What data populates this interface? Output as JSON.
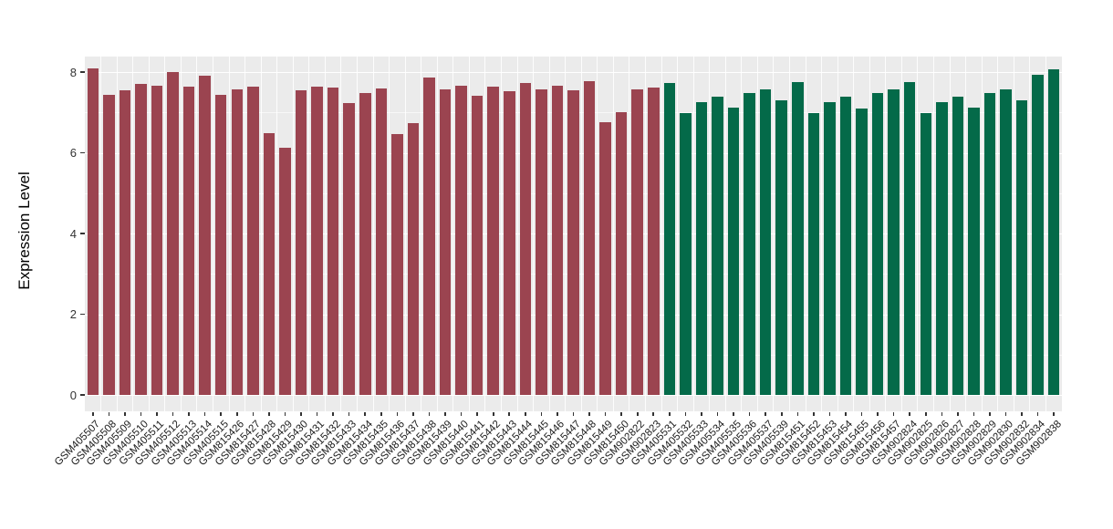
{
  "chart_data": {
    "type": "bar",
    "title": "",
    "xlabel": "",
    "ylabel": "Expression Level",
    "ylim": [
      0,
      8.8
    ],
    "yticks": [
      0,
      2,
      4,
      6,
      8
    ],
    "grid": "on",
    "legend": "none",
    "panel_bg": "#EBEBEB",
    "gridline_color": "#FFFFFF",
    "tick_color": "#333333",
    "group_colors": {
      "group1": "#9B4450",
      "group2": "#046A49"
    },
    "categories": [
      "GSM405507",
      "GSM405508",
      "GSM405509",
      "GSM405510",
      "GSM405511",
      "GSM405512",
      "GSM405513",
      "GSM405514",
      "GSM405515",
      "GSM815426",
      "GSM815427",
      "GSM815428",
      "GSM815429",
      "GSM815430",
      "GSM815431",
      "GSM815432",
      "GSM815433",
      "GSM815434",
      "GSM815435",
      "GSM815436",
      "GSM815437",
      "GSM815438",
      "GSM815439",
      "GSM815440",
      "GSM815441",
      "GSM815442",
      "GSM815443",
      "GSM815444",
      "GSM815445",
      "GSM815446",
      "GSM815447",
      "GSM815448",
      "GSM815449",
      "GSM815450",
      "GSM902822",
      "GSM902823",
      "GSM405531",
      "GSM405532",
      "GSM405533",
      "GSM405534",
      "GSM405535",
      "GSM405536",
      "GSM405537",
      "GSM405539",
      "GSM815451",
      "GSM815452",
      "GSM815453",
      "GSM815454",
      "GSM815455",
      "GSM815456",
      "GSM815457",
      "GSM902824",
      "GSM902825",
      "GSM902826",
      "GSM902827",
      "GSM902828",
      "GSM902829",
      "GSM902830",
      "GSM902832",
      "GSM902834",
      "GSM902838"
    ],
    "values": [
      8.1,
      7.43,
      7.55,
      7.71,
      7.66,
      7.99,
      7.63,
      7.92,
      7.44,
      7.57,
      7.63,
      6.49,
      6.13,
      7.54,
      7.64,
      7.61,
      7.24,
      7.47,
      7.6,
      6.46,
      6.73,
      7.87,
      7.58,
      7.65,
      7.42,
      7.64,
      7.53,
      7.72,
      7.57,
      7.67,
      7.54,
      7.77,
      6.76,
      7.0,
      7.58,
      7.62,
      7.74,
      6.99,
      7.26,
      7.39,
      7.12,
      7.48,
      7.57,
      7.3,
      7.75,
      6.98,
      7.26,
      7.39,
      7.1,
      7.48,
      7.58,
      7.75,
      6.98,
      7.26,
      7.39,
      7.12,
      7.47,
      7.57,
      7.3,
      7.93,
      8.07
    ],
    "groups": [
      "group1",
      "group1",
      "group1",
      "group1",
      "group1",
      "group1",
      "group1",
      "group1",
      "group1",
      "group1",
      "group1",
      "group1",
      "group1",
      "group1",
      "group1",
      "group1",
      "group1",
      "group1",
      "group1",
      "group1",
      "group1",
      "group1",
      "group1",
      "group1",
      "group1",
      "group1",
      "group1",
      "group1",
      "group1",
      "group1",
      "group1",
      "group1",
      "group1",
      "group1",
      "group1",
      "group1",
      "group2",
      "group2",
      "group2",
      "group2",
      "group2",
      "group2",
      "group2",
      "group2",
      "group2",
      "group2",
      "group2",
      "group2",
      "group2",
      "group2",
      "group2",
      "group2",
      "group2",
      "group2",
      "group2",
      "group2",
      "group2",
      "group2",
      "group2",
      "group2",
      "group2"
    ]
  }
}
